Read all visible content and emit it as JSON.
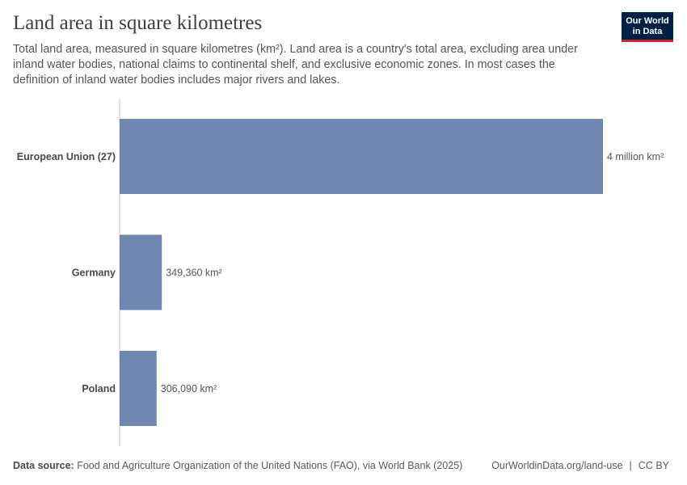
{
  "title": "Land area in square kilometres",
  "subtitle": "Total land area, measured in square kilometres (km²). Land area is a country's total area, excluding area under inland water bodies, national claims to continental shelf, and exclusive economic zones. In most cases the definition of inland water bodies includes major rivers and lakes.",
  "logo": {
    "line1": "Our World",
    "line2": "in Data"
  },
  "footer": {
    "source_label": "Data source:",
    "source_text": "Food and Agriculture Organization of the United Nations (FAO), via World Bank (2025)",
    "url": "OurWorldinData.org/land-use",
    "separator": "|",
    "license": "CC BY"
  },
  "colors": {
    "bar": "#6f87b0",
    "axis": "#d9d9d9"
  },
  "chart_data": {
    "type": "bar",
    "orientation": "horizontal",
    "unit": "km²",
    "categories": [
      "European Union (27)",
      "Germany",
      "Poland"
    ],
    "values": [
      4000000,
      349360,
      306090
    ],
    "value_labels": [
      "4 million km²",
      "349,360 km²",
      "306,090 km²"
    ],
    "xlim": [
      0,
      4000000
    ],
    "grid": false
  }
}
